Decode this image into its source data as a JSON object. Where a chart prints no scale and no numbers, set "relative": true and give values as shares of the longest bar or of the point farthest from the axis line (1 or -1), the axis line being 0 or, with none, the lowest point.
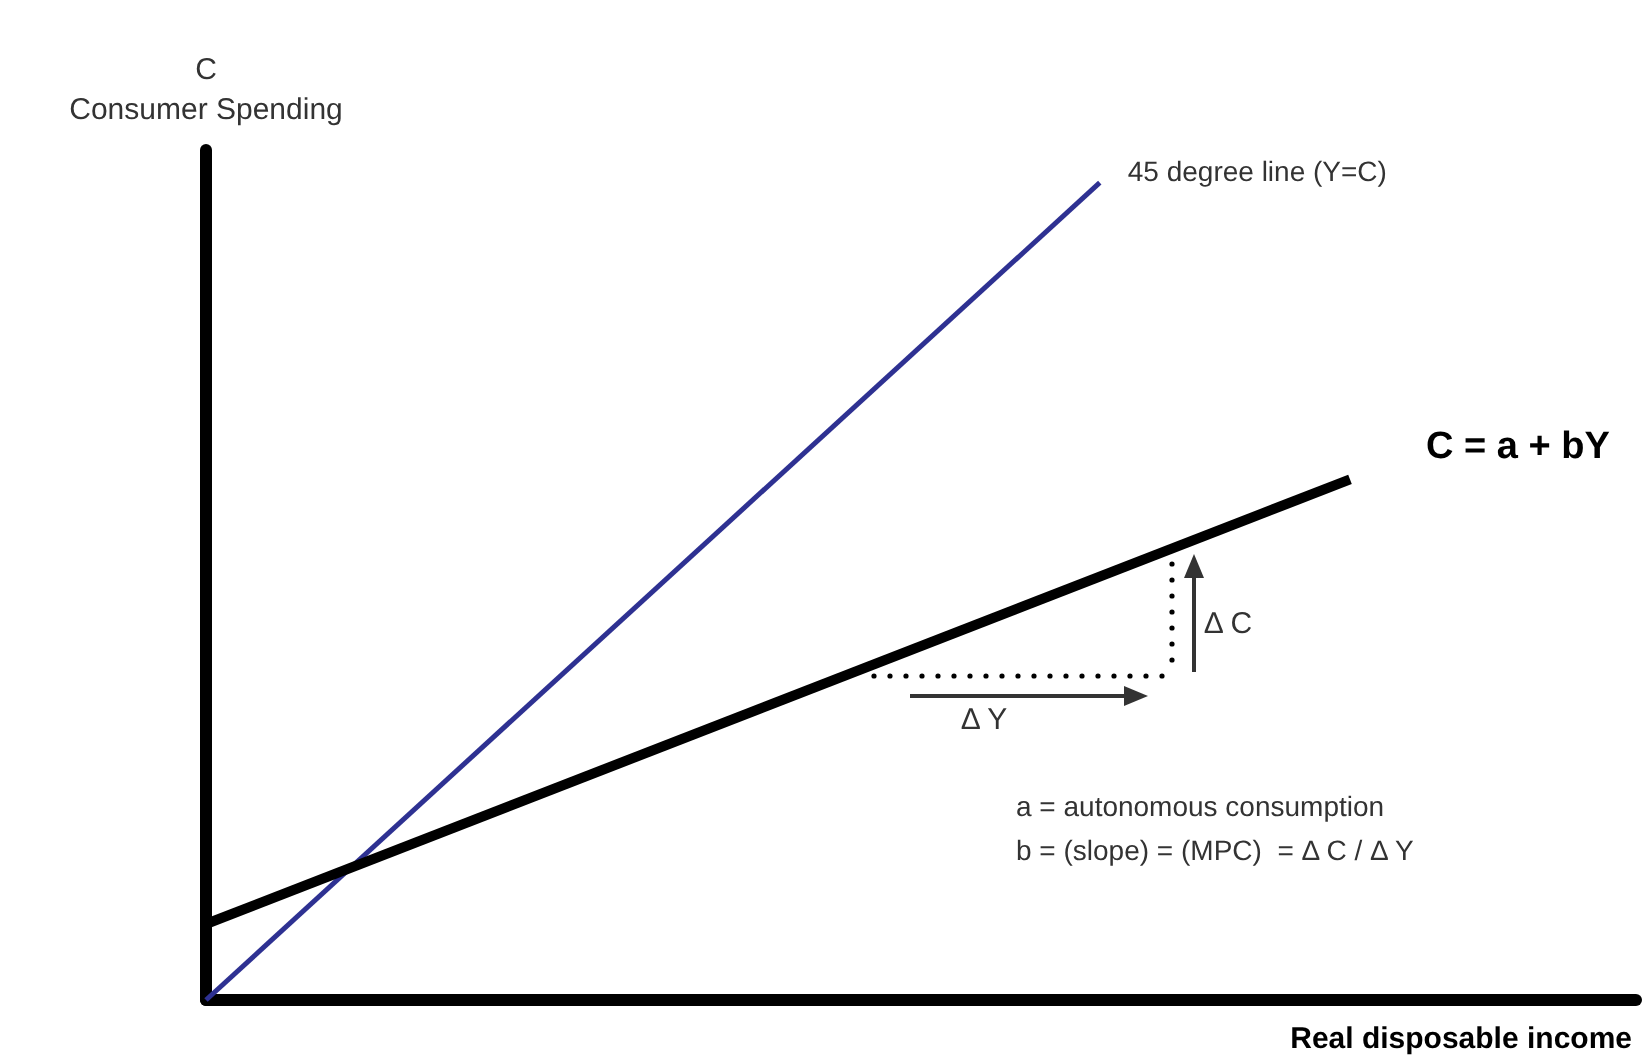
{
  "chart_data": {
    "type": "line",
    "relative": true,
    "ylabel": "C\nConsumer Spending",
    "xlabel": "Real disposable income",
    "legend": false,
    "grid": false,
    "marker": "none",
    "categories": [
      null,
      null,
      null,
      null,
      null,
      null,
      null,
      null,
      null,
      null,
      null,
      null,
      null,
      null,
      null,
      null,
      null,
      null,
      null,
      null,
      null,
      null,
      null,
      null,
      null,
      null,
      null,
      null,
      null,
      null,
      null,
      null,
      null,
      null,
      null,
      null,
      null,
      null,
      null,
      null,
      null
    ],
    "series": [
      {
        "name": "45 degree line (Y=C)",
        "color": "#2e3192",
        "values": [
          0,
          null,
          null,
          null,
          null,
          null,
          null,
          null,
          null,
          null,
          null,
          null,
          null,
          null,
          null,
          null,
          null,
          null,
          null,
          null,
          null,
          null,
          null,
          null,
          null,
          1,
          null,
          null,
          null,
          null,
          null,
          null,
          null,
          null,
          null,
          null,
          null,
          null,
          null,
          null,
          null
        ]
      },
      {
        "name": "C = a + bY",
        "color": "#000000",
        "values": [
          0.093,
          null,
          null,
          null,
          null,
          null,
          null,
          null,
          null,
          null,
          null,
          null,
          null,
          null,
          null,
          null,
          null,
          null,
          null,
          null,
          null,
          null,
          null,
          null,
          null,
          null,
          null,
          null,
          null,
          null,
          null,
          null,
          0.637,
          null,
          null,
          null,
          null,
          null,
          null,
          null,
          null
        ]
      }
    ],
    "annotations": [
      "Δ Y",
      "Δ C",
      "a = autonomous consumption",
      "b = (slope) = (MPC)  = Δ C / Δ Y"
    ]
  }
}
